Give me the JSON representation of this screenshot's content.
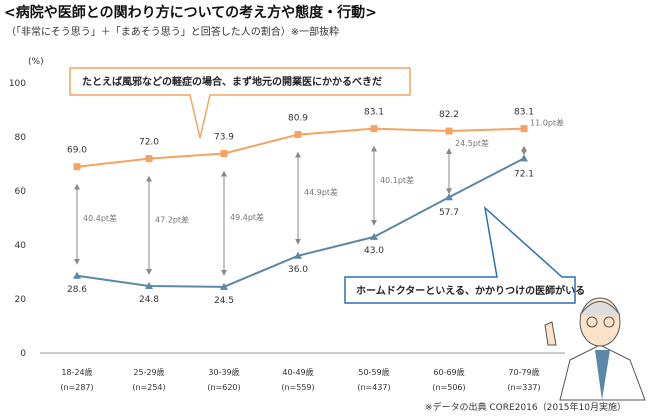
{
  "header": {
    "title": "<病院や医師との関わり方についての考え方や態度・行動>",
    "subtitle": "（「非常にそう思う」＋「まあそう思う」と回答した人の割合）※一部抜粋"
  },
  "source": "※データの出典 CORE2016（2015年10月実施）",
  "chart_data": {
    "type": "line",
    "ylabel": "(%)",
    "ylim": [
      0,
      100
    ],
    "yticks": [
      0,
      20,
      40,
      60,
      80,
      100
    ],
    "grid": false,
    "categories": [
      "18-24歳",
      "25-29歳",
      "30-39歳",
      "40-49歳",
      "50-59歳",
      "60-69歳",
      "70-79歳"
    ],
    "sample_sizes": [
      "(n=287)",
      "(n=254)",
      "(n=620)",
      "(n=559)",
      "(n=437)",
      "(n=506)",
      "(n=337)"
    ],
    "series": [
      {
        "name": "たとえば風邪などの軽症の場合、まず地元の開業医にかかるべきだ",
        "color": "#F4A460",
        "marker": "square",
        "values": [
          69.0,
          72.0,
          73.9,
          80.9,
          83.1,
          82.2,
          83.1
        ]
      },
      {
        "name": "ホームドクターといえる、かかりつけの医師がいる",
        "color": "#5B87A8",
        "marker": "triangle",
        "values": [
          28.6,
          24.8,
          24.5,
          36.0,
          43.0,
          57.7,
          72.1
        ]
      }
    ],
    "gap_labels": [
      "40.4pt差",
      "47.2pt差",
      "49.4pt差",
      "44.9pt差",
      "40.1pt差",
      "24.5pt差",
      "11.0pt差"
    ]
  }
}
